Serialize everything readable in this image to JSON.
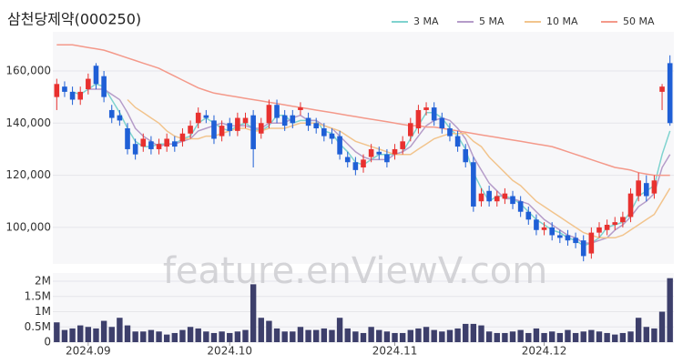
{
  "chart_data": [
    {
      "type": "candlestick",
      "title": "삼천당제약(000250)",
      "watermark": "feature.enViewV.com",
      "up_color": "#e8312f",
      "down_color": "#1f5fd6",
      "open": [
        150000,
        154000,
        152000,
        149000,
        153000,
        162000,
        158000,
        145000,
        143000,
        138000,
        132000,
        131000,
        133000,
        130000,
        131000,
        133000,
        133000,
        136000,
        140000,
        143000,
        141000,
        135000,
        140000,
        137000,
        140000,
        143000,
        136000,
        140000,
        147000,
        143000,
        143000,
        145000,
        142000,
        140000,
        138000,
        136000,
        135000,
        127000,
        125000,
        123000,
        127000,
        129000,
        128000,
        128000,
        130000,
        135000,
        138000,
        145000,
        146000,
        142000,
        138000,
        135000,
        130000,
        125000,
        110000,
        114000,
        110000,
        111000,
        112000,
        110000,
        106000,
        103000,
        99000,
        100000,
        97000,
        97000,
        96000,
        95000,
        90000,
        98000,
        99000,
        101000,
        102000,
        104000,
        112000,
        117000,
        113000,
        152000,
        163000
      ],
      "high": [
        157000,
        156000,
        154000,
        154000,
        159000,
        163000,
        160000,
        147000,
        145000,
        140000,
        134000,
        136000,
        135000,
        134000,
        136000,
        135000,
        138000,
        141000,
        146000,
        145000,
        143000,
        141000,
        142000,
        144000,
        144000,
        145000,
        142000,
        149000,
        149000,
        145000,
        145000,
        148000,
        144000,
        142000,
        140000,
        138000,
        137000,
        129000,
        127000,
        128000,
        132000,
        131000,
        130000,
        132000,
        135000,
        142000,
        147000,
        148000,
        148000,
        144000,
        140000,
        137000,
        132000,
        127000,
        115000,
        116000,
        114000,
        115000,
        114000,
        112000,
        108000,
        105000,
        102000,
        102000,
        99000,
        99000,
        98000,
        97000,
        100000,
        102000,
        103000,
        104000,
        106000,
        115000,
        121000,
        120000,
        120000,
        155000,
        166000
      ],
      "low": [
        145000,
        150000,
        147000,
        147000,
        151000,
        153000,
        148000,
        140000,
        139000,
        128000,
        126000,
        129000,
        128000,
        128000,
        129000,
        129000,
        131000,
        134000,
        138000,
        140000,
        132000,
        133000,
        135000,
        135000,
        138000,
        123000,
        134000,
        138000,
        140000,
        137000,
        138000,
        143000,
        137000,
        136000,
        133000,
        132000,
        126000,
        123000,
        120000,
        121000,
        125000,
        126000,
        123000,
        126000,
        128000,
        133000,
        136000,
        143000,
        139000,
        136000,
        133000,
        129000,
        123000,
        106000,
        108000,
        108000,
        108000,
        109000,
        107000,
        104000,
        101000,
        97000,
        97000,
        95000,
        94000,
        93000,
        92000,
        87000,
        88000,
        96000,
        97000,
        99000,
        100000,
        102000,
        110000,
        110000,
        111000,
        145000,
        139000
      ],
      "close": [
        155000,
        152000,
        149000,
        152000,
        157000,
        155000,
        150000,
        142000,
        141000,
        130000,
        128000,
        134000,
        130000,
        132000,
        134000,
        131000,
        136000,
        139000,
        144000,
        142000,
        134000,
        139000,
        137000,
        142000,
        142000,
        130000,
        140000,
        147000,
        142000,
        139000,
        140000,
        146000,
        139000,
        138000,
        135000,
        134000,
        128000,
        125000,
        122000,
        126000,
        130000,
        128000,
        125000,
        130000,
        133000,
        140000,
        145000,
        146000,
        141000,
        138000,
        135000,
        131000,
        125000,
        108000,
        113000,
        110000,
        112000,
        113000,
        109000,
        106000,
        103000,
        99000,
        100000,
        97000,
        96000,
        95000,
        94000,
        89000,
        98000,
        100000,
        101000,
        102000,
        104000,
        113000,
        118000,
        112000,
        118000,
        154000,
        140000
      ],
      "series": [
        {
          "name": "3 MA",
          "color": "#7fd3cf",
          "values": [
            null,
            null,
            152000,
            151000,
            153000,
            155000,
            154000,
            149000,
            144000,
            138000,
            133000,
            131000,
            131000,
            132000,
            132000,
            132000,
            134000,
            135000,
            140000,
            142000,
            140000,
            138000,
            137000,
            139000,
            140000,
            138000,
            137000,
            139000,
            143000,
            143000,
            140000,
            141000,
            141000,
            141000,
            137000,
            136000,
            132000,
            129000,
            125000,
            124000,
            126000,
            128000,
            128000,
            128000,
            129000,
            134000,
            139000,
            144000,
            144000,
            142000,
            138000,
            135000,
            130000,
            121000,
            115000,
            110000,
            112000,
            112000,
            111000,
            109000,
            106000,
            103000,
            101000,
            99000,
            98000,
            96000,
            95000,
            93000,
            94000,
            96000,
            100000,
            101000,
            102000,
            106000,
            112000,
            114000,
            116000,
            128000,
            137000
          ]
        },
        {
          "name": "5 MA",
          "color": "#b59cc9",
          "values": [
            null,
            null,
            null,
            null,
            153000,
            153000,
            153000,
            151000,
            149000,
            144000,
            138000,
            135000,
            133000,
            131000,
            132000,
            132000,
            133000,
            134000,
            137000,
            138000,
            139000,
            140000,
            139000,
            139000,
            139000,
            138000,
            138000,
            140000,
            140000,
            140000,
            142000,
            143000,
            141000,
            141000,
            139000,
            138000,
            135000,
            132000,
            129000,
            127000,
            126000,
            126000,
            126000,
            128000,
            129000,
            131000,
            135000,
            139000,
            141000,
            142000,
            141000,
            138000,
            134000,
            127000,
            122000,
            117000,
            114000,
            111000,
            111000,
            110000,
            109000,
            106000,
            103000,
            101000,
            99000,
            97000,
            96000,
            94000,
            94000,
            95000,
            96000,
            99000,
            101000,
            104000,
            108000,
            110000,
            113000,
            123000,
            128000
          ]
        },
        {
          "name": "10 MA",
          "color": "#f2c48d",
          "values": [
            null,
            null,
            null,
            null,
            null,
            null,
            null,
            null,
            null,
            149000,
            146000,
            144000,
            142000,
            140000,
            137000,
            135000,
            134000,
            134000,
            134000,
            135000,
            135000,
            136000,
            137000,
            138000,
            138000,
            137000,
            137000,
            138000,
            138000,
            138000,
            139000,
            140000,
            140000,
            140000,
            139000,
            138000,
            137000,
            135000,
            133000,
            132000,
            131000,
            130000,
            129000,
            128000,
            128000,
            128000,
            130000,
            132000,
            134000,
            135000,
            136000,
            136000,
            136000,
            133000,
            131000,
            127000,
            124000,
            121000,
            118000,
            116000,
            113000,
            110000,
            108000,
            106000,
            104000,
            102000,
            100000,
            98000,
            97000,
            96000,
            96000,
            96000,
            97000,
            99000,
            101000,
            103000,
            105000,
            110000,
            115000
          ]
        },
        {
          "name": "50 MA",
          "color": "#f4998a",
          "values": [
            170000,
            170000,
            170000,
            169500,
            169000,
            168500,
            168000,
            167000,
            166000,
            165000,
            164000,
            163000,
            162000,
            161000,
            159500,
            158000,
            156500,
            155000,
            153500,
            152500,
            151500,
            151000,
            150500,
            150000,
            149500,
            149000,
            148500,
            148000,
            147500,
            147000,
            146500,
            146000,
            145500,
            145000,
            144500,
            144000,
            143500,
            143000,
            142500,
            142000,
            141500,
            141000,
            140500,
            140000,
            139500,
            139000,
            139000,
            138500,
            138500,
            138000,
            137500,
            137000,
            136500,
            136000,
            135500,
            135000,
            134500,
            134000,
            133500,
            133000,
            132500,
            132000,
            131500,
            131000,
            130000,
            129000,
            128000,
            127000,
            126000,
            125000,
            124000,
            123000,
            122500,
            122000,
            121000,
            120500,
            120000,
            120000,
            120000
          ]
        }
      ],
      "ylim": [
        86000,
        175000
      ],
      "yticks": [
        {
          "value": 100000,
          "label": "100,000"
        },
        {
          "value": 120000,
          "label": "120,000"
        },
        {
          "value": 140000,
          "label": "140,000"
        },
        {
          "value": 160000,
          "label": "160,000"
        }
      ],
      "grid": true
    },
    {
      "type": "bar",
      "color": "#3d3f6b",
      "categories": [
        null,
        null,
        null,
        null,
        "2024.09",
        null,
        null,
        null,
        null,
        null,
        null,
        null,
        null,
        null,
        null,
        null,
        null,
        null,
        null,
        null,
        null,
        null,
        "2024.10",
        null,
        null,
        null,
        null,
        null,
        null,
        null,
        null,
        null,
        null,
        null,
        null,
        null,
        null,
        null,
        null,
        null,
        null,
        null,
        null,
        "2024.11",
        null,
        null,
        null,
        null,
        null,
        null,
        null,
        null,
        null,
        null,
        null,
        null,
        null,
        null,
        null,
        null,
        null,
        null,
        "2024.12",
        null,
        null,
        null,
        null,
        null,
        null,
        null,
        null,
        null,
        null,
        null,
        null,
        null,
        null,
        null,
        null
      ],
      "values": [
        650000,
        400000,
        450000,
        550000,
        500000,
        450000,
        700000,
        500000,
        800000,
        550000,
        350000,
        350000,
        400000,
        350000,
        250000,
        300000,
        400000,
        500000,
        450000,
        350000,
        300000,
        350000,
        300000,
        350000,
        400000,
        1900000,
        800000,
        700000,
        450000,
        350000,
        350000,
        500000,
        400000,
        400000,
        450000,
        400000,
        800000,
        450000,
        350000,
        300000,
        500000,
        400000,
        350000,
        300000,
        300000,
        400000,
        450000,
        500000,
        400000,
        350000,
        400000,
        450000,
        600000,
        600000,
        550000,
        350000,
        300000,
        300000,
        350000,
        400000,
        300000,
        450000,
        300000,
        350000,
        300000,
        400000,
        300000,
        350000,
        400000,
        350000,
        300000,
        250000,
        300000,
        350000,
        800000,
        500000,
        450000,
        1000000,
        2100000
      ],
      "ylim": [
        0,
        2270000
      ],
      "yticks": [
        0,
        {
          "value": 500000,
          "label": "0.5M"
        },
        {
          "value": 1000000,
          "label": "1M"
        },
        {
          "value": 1500000,
          "label": "1.5M"
        },
        {
          "value": 2000000,
          "label": "2M"
        }
      ],
      "grid": true
    }
  ]
}
